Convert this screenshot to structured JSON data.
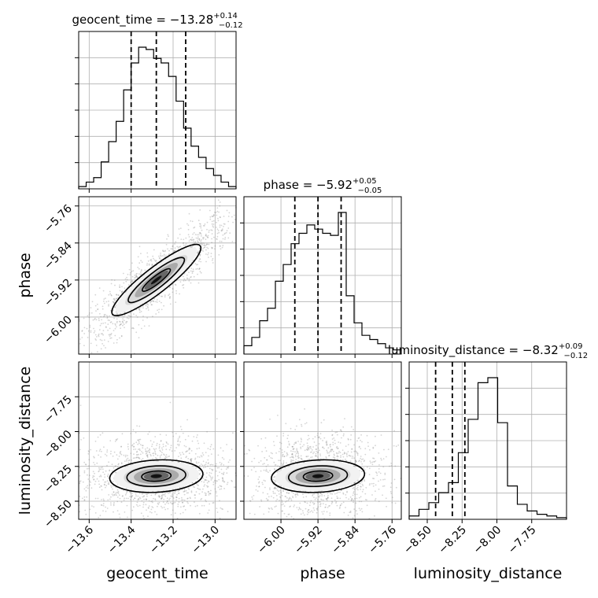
{
  "chart_data": {
    "type": "corner",
    "parameters": [
      "geocent_time",
      "phase",
      "luminosity_distance"
    ],
    "diagonal_titles": [
      {
        "param": "geocent_time",
        "prefix": "geocent_time = ",
        "median": "−13.28",
        "plus": "+0.14",
        "minus": "−0.12"
      },
      {
        "param": "phase",
        "prefix": "phase = ",
        "median": "−5.92",
        "plus": "+0.05",
        "minus": "−0.05"
      },
      {
        "param": "luminosity_distance",
        "prefix": "luminosity_distance = ",
        "median": "−8.32",
        "plus": "+0.09",
        "minus": "−0.12"
      }
    ],
    "axis_labels": {
      "x": [
        "geocent_time",
        "phase",
        "luminosity_distance"
      ],
      "y": [
        "phase",
        "luminosity_distance"
      ]
    },
    "ranges": {
      "geocent_time": [
        -13.65,
        -12.9
      ],
      "phase": [
        -6.08,
        -5.74
      ],
      "luminosity_distance": [
        -8.63,
        -7.5
      ]
    },
    "ticks": {
      "geocent_time": {
        "values": [
          -13.6,
          -13.4,
          -13.2,
          -13.0
        ],
        "labels": [
          "−13.6",
          "−13.4",
          "−13.2",
          "−13.0"
        ]
      },
      "phase": {
        "values": [
          -6.0,
          -5.92,
          -5.84,
          -5.76
        ],
        "labels": [
          "−6.00",
          "−5.92",
          "−5.84",
          "−5.76"
        ]
      },
      "luminosity_distance": {
        "values": [
          -8.5,
          -8.25,
          -8.0,
          -7.75
        ],
        "labels": [
          "−8.50",
          "−8.25",
          "−8.00",
          "−7.75"
        ]
      }
    },
    "quantiles": {
      "geocent_time": [
        -13.4,
        -13.28,
        -13.14
      ],
      "phase": [
        -5.97,
        -5.92,
        -5.87
      ],
      "luminosity_distance": [
        -8.44,
        -8.32,
        -8.23
      ]
    },
    "histograms": {
      "geocent_time": {
        "edges_range": [
          -13.65,
          -12.9
        ],
        "counts": [
          1,
          3,
          5,
          12,
          21,
          30,
          44,
          56,
          63,
          62,
          58,
          56,
          50,
          39,
          27,
          19,
          14,
          9,
          6,
          3,
          1
        ]
      },
      "phase": {
        "edges_range": [
          -6.08,
          -5.74
        ],
        "counts": [
          4,
          8,
          16,
          22,
          35,
          43,
          53,
          58,
          62,
          60,
          58,
          57,
          68,
          28,
          15,
          9,
          7,
          5,
          3,
          2
        ]
      },
      "luminosity_distance": {
        "edges_range": [
          -8.63,
          -7.5
        ],
        "counts": [
          2,
          6,
          10,
          16,
          22,
          40,
          60,
          82,
          85,
          58,
          20,
          9,
          5,
          3,
          2,
          1
        ]
      }
    },
    "grid": true
  }
}
